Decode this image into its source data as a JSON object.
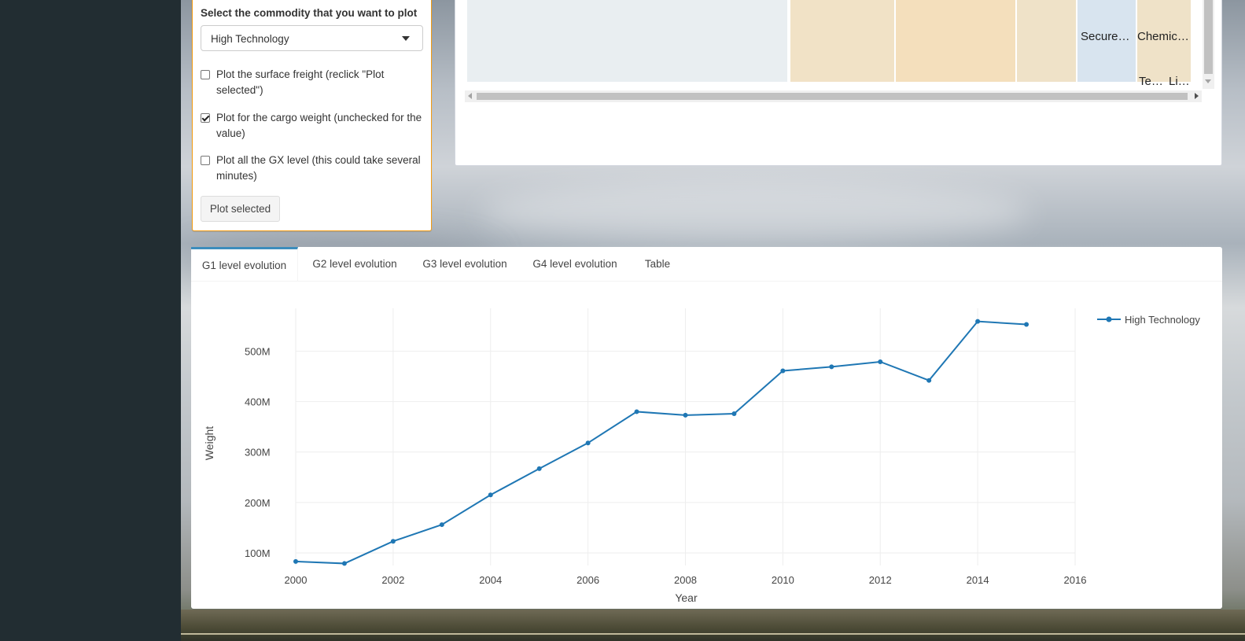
{
  "controls": {
    "select_label": "Select the commodity that you want to plot",
    "commodity": "High Technology",
    "options": [
      {
        "label": "Plot the surface freight (reclick \"Plot selected\")",
        "checked": false
      },
      {
        "label": "Plot for the cargo weight (unchecked for the value)",
        "checked": true
      },
      {
        "label": "Plot all the GX level (this could take several minutes)",
        "checked": false
      }
    ],
    "plot_button": "Plot selected"
  },
  "treemap": {
    "labels": [
      "Secure…",
      "Chemic…",
      "Te…",
      "Li…"
    ],
    "colors": {
      "grey": "#e9eef1",
      "tan1": "#f1e2c6",
      "tan2": "#f4dfbc",
      "tan3": "#efe2c8",
      "blue": "#d8e4ef"
    }
  },
  "tabs": [
    "G1 level evolution",
    "G2 level evolution",
    "G3 level evolution",
    "G4 level evolution",
    "Table"
  ],
  "active_tab": "G1 level evolution",
  "chart_data": {
    "type": "line",
    "xlabel": "Year",
    "ylabel": "Weight",
    "xlim": [
      2000,
      2016
    ],
    "ylim": [
      75,
      585
    ],
    "x_ticks": [
      2000,
      2002,
      2004,
      2006,
      2008,
      2010,
      2012,
      2014,
      2016
    ],
    "y_ticks": [
      {
        "v": 100,
        "label": "100M"
      },
      {
        "v": 200,
        "label": "200M"
      },
      {
        "v": 300,
        "label": "300M"
      },
      {
        "v": 400,
        "label": "400M"
      },
      {
        "v": 500,
        "label": "500M"
      }
    ],
    "grid": true,
    "legend_position": "top-right",
    "color": "#1f77b4",
    "series": [
      {
        "name": "High Technology",
        "x": [
          2000,
          2001,
          2002,
          2003,
          2004,
          2005,
          2006,
          2007,
          2008,
          2009,
          2010,
          2011,
          2012,
          2013,
          2014,
          2015
        ],
        "y": [
          83,
          79,
          123,
          156,
          215,
          267,
          318,
          380,
          373,
          376,
          461,
          469,
          479,
          442,
          559,
          553
        ]
      }
    ]
  }
}
